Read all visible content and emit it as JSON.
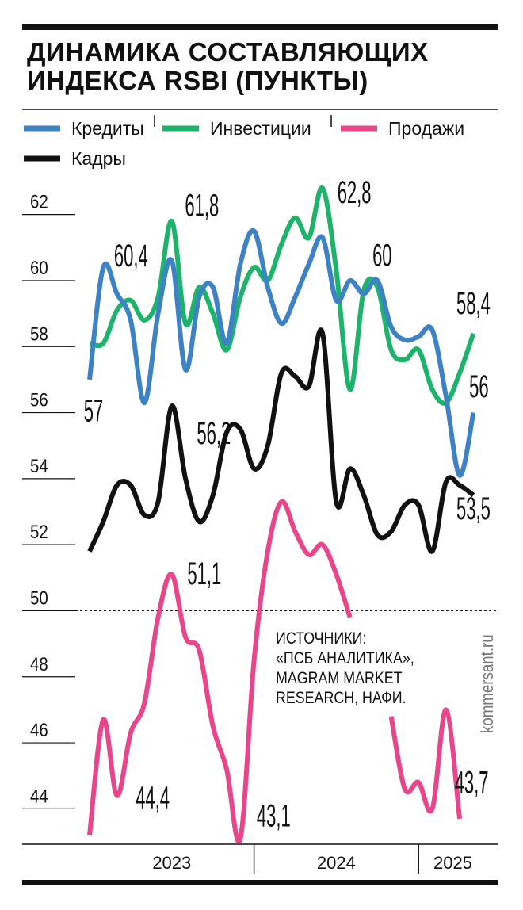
{
  "chart_data": {
    "type": "line",
    "title": "ДИНАМИКА СОСТАВЛЯЮЩИХ ИНДЕКСА RSBI (ПУНКТЫ)",
    "categories": [
      null,
      null,
      null,
      null,
      null,
      null,
      null,
      null,
      null,
      null,
      null,
      null,
      null,
      null,
      null,
      null,
      null,
      null,
      null,
      null,
      null,
      null,
      null,
      null,
      null,
      null,
      null,
      null,
      null
    ],
    "x_groups": [
      {
        "label": "2023",
        "count": 12
      },
      {
        "label": "2024",
        "count": 12
      },
      {
        "label": "2025",
        "count": 5
      }
    ],
    "series": [
      {
        "name": "Кредиты",
        "color": "#3d82c4",
        "values": [
          57,
          60.4,
          59.6,
          58.8,
          56.3,
          59,
          60.6,
          57.3,
          59.5,
          59.8,
          58.1,
          60.5,
          61.5,
          59.8,
          58.7,
          59.5,
          60.5,
          61.3,
          59.4,
          60,
          59.6,
          60,
          58.6,
          58.2,
          58.3,
          58.5,
          56.5,
          54.1,
          56
        ],
        "value_labels": [
          "57",
          "60,4",
          null,
          null,
          null,
          null,
          null,
          null,
          null,
          null,
          null,
          null,
          null,
          null,
          null,
          null,
          null,
          null,
          null,
          null,
          null,
          "60",
          null,
          null,
          null,
          null,
          null,
          null,
          "56"
        ]
      },
      {
        "name": "Инвестиции",
        "color": "#1db36b",
        "values": [
          58.1,
          58.1,
          59.1,
          59.4,
          58.8,
          59.5,
          61.8,
          58.7,
          59.8,
          59,
          57.9,
          59.5,
          60.4,
          60,
          61.1,
          61.9,
          61.3,
          62.8,
          60.3,
          56.7,
          59.7,
          59.8,
          57.9,
          57.6,
          57.9,
          56.7,
          56.3,
          57.2,
          58.4
        ],
        "value_labels": [
          null,
          null,
          null,
          null,
          null,
          null,
          "61,8",
          null,
          null,
          null,
          null,
          null,
          null,
          null,
          null,
          null,
          null,
          "62,8",
          null,
          null,
          null,
          null,
          null,
          null,
          null,
          null,
          null,
          null,
          "58,4"
        ]
      },
      {
        "name": "Продажи",
        "color": "#e8458b",
        "values": [
          43.2,
          46.7,
          44.4,
          46.3,
          47.2,
          49.8,
          51.1,
          49.2,
          48.8,
          46.5,
          45.2,
          43.1,
          48.5,
          51.8,
          53.3,
          52.4,
          51.7,
          52,
          51.1,
          49.8,
          null,
          null,
          46.8,
          44.6,
          44.8,
          44,
          47,
          43.7,
          null
        ],
        "value_labels": [
          null,
          null,
          "44,4",
          null,
          null,
          null,
          "51,1",
          null,
          null,
          null,
          null,
          "43,1",
          null,
          null,
          null,
          null,
          null,
          null,
          null,
          null,
          null,
          null,
          null,
          null,
          null,
          null,
          null,
          "43,7",
          null
        ]
      },
      {
        "name": "Кадры",
        "color": "#111111",
        "values": [
          51.8,
          52.7,
          53.8,
          53.8,
          52.9,
          53.3,
          56.2,
          54,
          52.7,
          53.5,
          55.4,
          55.5,
          54.3,
          55,
          57.2,
          57.1,
          56.8,
          58.4,
          53.3,
          54.3,
          53.5,
          52.3,
          52.4,
          53.2,
          53.2,
          51.8,
          53.9,
          53.8,
          53.5
        ],
        "value_labels": [
          null,
          null,
          null,
          null,
          null,
          null,
          "56,2",
          null,
          null,
          null,
          null,
          null,
          null,
          null,
          null,
          null,
          null,
          null,
          null,
          null,
          null,
          null,
          null,
          null,
          null,
          null,
          null,
          null,
          "53,5"
        ]
      }
    ],
    "ylim": [
      43,
      63
    ],
    "yticks": [
      44,
      46,
      48,
      50,
      52,
      54,
      56,
      58,
      60,
      62
    ],
    "reference_line": 50,
    "source_lines": [
      "ИСТОЧНИКИ:",
      "«ПСБ АНАЛИТИКА»,",
      "MAGRAM MARKET",
      "RESEARCH, НАФИ."
    ],
    "watermark": "kommersant.ru"
  }
}
